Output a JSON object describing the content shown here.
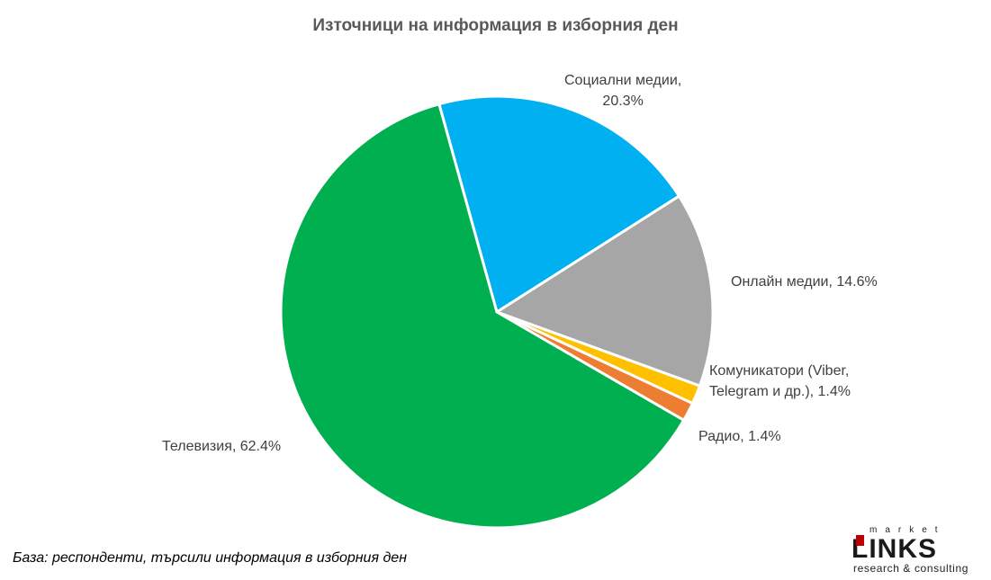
{
  "chart_data": {
    "type": "pie",
    "title": "Източници на информация в изборния ден",
    "slices": [
      {
        "name": "Социални медии",
        "value": 20.3,
        "color": "#00B0F0",
        "label_lines": [
          "Социални медии,",
          "20.3%"
        ]
      },
      {
        "name": "Онлайн медии",
        "value": 14.6,
        "color": "#A6A6A6",
        "label_lines": [
          "Онлайн медии, 14.6%"
        ]
      },
      {
        "name": "Комуникатори (Viber, Telegram и др.)",
        "value": 1.4,
        "color": "#FFC000",
        "label_lines": [
          "Комуникатори (Viber,",
          "Telegram и др.), 1.4%"
        ]
      },
      {
        "name": "Радио",
        "value": 1.4,
        "color": "#ED7D31",
        "label_lines": [
          "Радио, 1.4%"
        ]
      },
      {
        "name": "Телевизия",
        "value": 62.4,
        "color": "#00B050",
        "label_lines": [
          "Телевизия, 62.4%"
        ]
      }
    ],
    "legend": "none",
    "data_labels": "outside"
  },
  "footer_note": "База: респонденти, търсили информация в изборния ден",
  "logo": {
    "top_text": "market",
    "main_text": "LINKS",
    "sub_text": "research & consulting"
  }
}
